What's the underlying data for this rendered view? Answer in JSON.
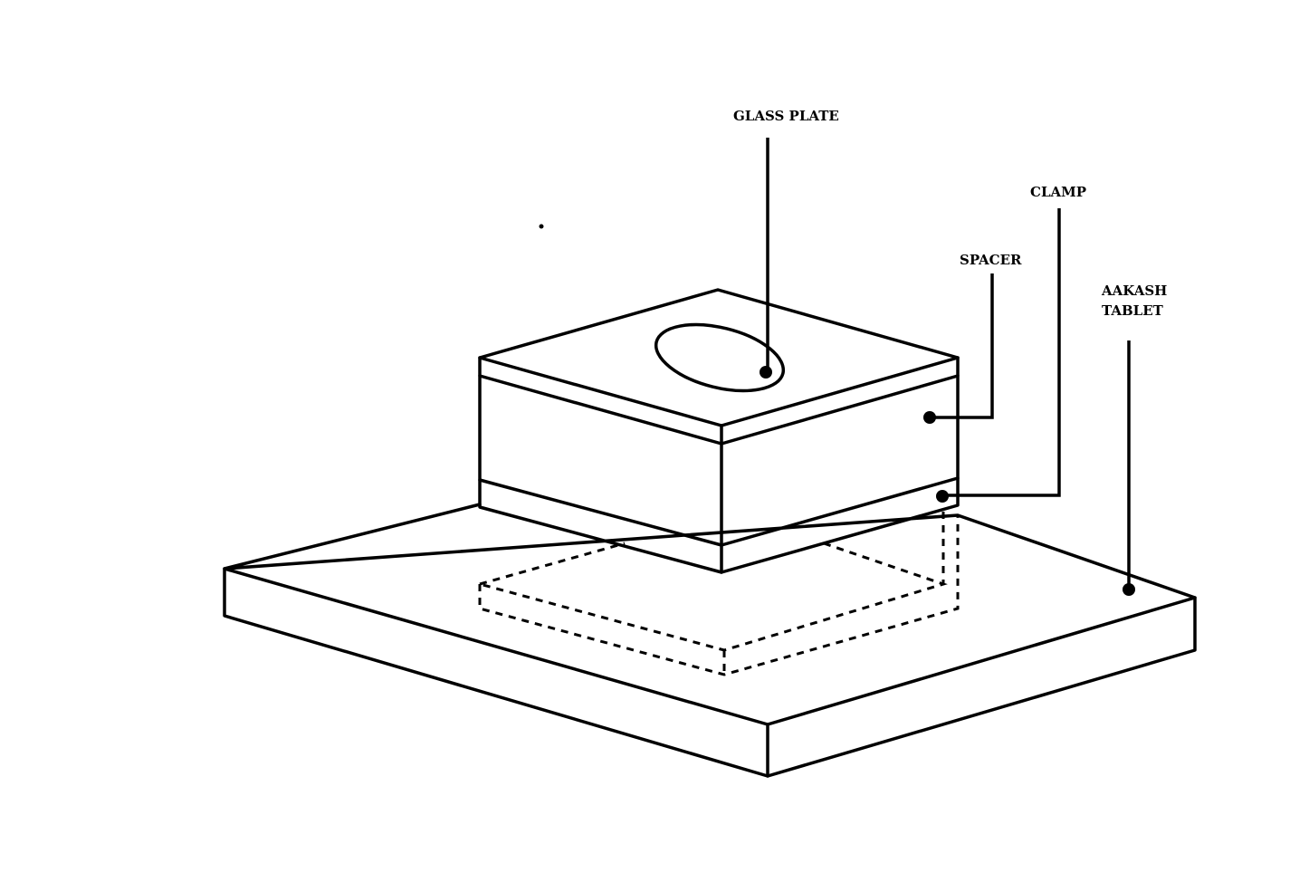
{
  "diagram": {
    "labels": {
      "glass_plate": "GLASS PLATE",
      "clamp": "CLAMP",
      "spacer": "SPACER",
      "aakash_tablet_line1": "AAKASH",
      "aakash_tablet_line2": "TABLET"
    },
    "colors": {
      "line": "#000000",
      "background": "#ffffff"
    }
  }
}
